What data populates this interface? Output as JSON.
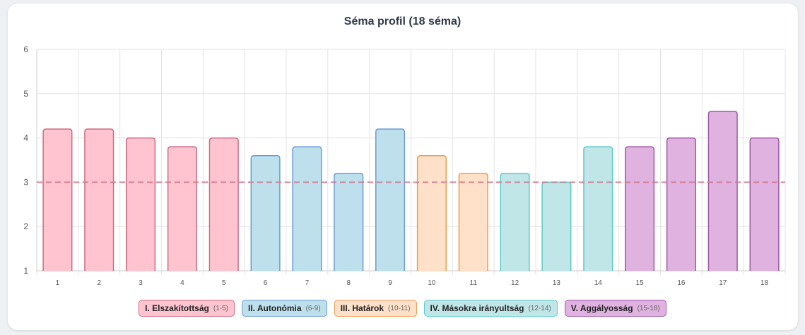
{
  "chart_data": {
    "type": "bar",
    "title": "Séma profil (18 séma)",
    "xlabel": "",
    "ylabel": "",
    "ylim": [
      1,
      6
    ],
    "yticks": [
      1,
      2,
      3,
      4,
      5,
      6
    ],
    "grid": true,
    "categories": [
      "1",
      "2",
      "3",
      "4",
      "5",
      "6",
      "7",
      "8",
      "9",
      "10",
      "11",
      "12",
      "13",
      "14",
      "15",
      "16",
      "17",
      "18"
    ],
    "values": [
      4.2,
      4.2,
      4.0,
      3.8,
      4.0,
      3.6,
      3.8,
      3.2,
      4.2,
      3.6,
      3.2,
      3.2,
      3.0,
      3.8,
      3.8,
      4.0,
      4.6,
      4.0
    ],
    "groups": [
      0,
      0,
      0,
      0,
      0,
      1,
      1,
      1,
      1,
      2,
      2,
      3,
      3,
      3,
      4,
      4,
      4,
      4
    ],
    "threshold": 3,
    "legend_position": "bottom-center",
    "legend": [
      {
        "label": "I. Elszakítottság",
        "range": "(1-5)",
        "fill": "#ffc4cf",
        "stroke": "#cf6b80"
      },
      {
        "label": "II. Autonómia",
        "range": "(6-9)",
        "fill": "#bde0ec",
        "stroke": "#6c9bd4"
      },
      {
        "label": "III. Határok",
        "range": "(10-11)",
        "fill": "#ffe0c8",
        "stroke": "#f19c50"
      },
      {
        "label": "IV. Másokra irányultság",
        "range": "(12-14)",
        "fill": "#c0e6e8",
        "stroke": "#5ccbcb"
      },
      {
        "label": "V. Aggályosság",
        "range": "(15-18)",
        "fill": "#e0b2e0",
        "stroke": "#a05aa8"
      }
    ],
    "threshold_color": "#d4768c",
    "grid_color": "#e3e3e3",
    "axis_color": "#cfcfcf",
    "tick_text_color": "#555555"
  }
}
